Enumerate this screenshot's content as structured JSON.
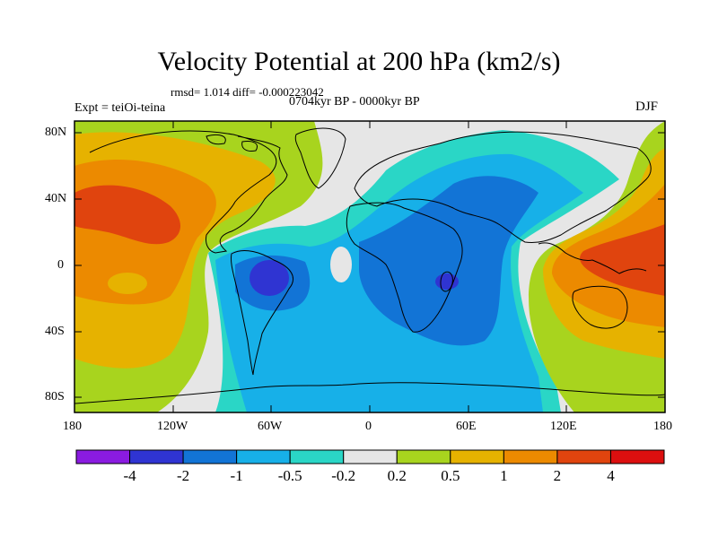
{
  "title": "Velocity Potential at 200 hPa (km2/s)",
  "stats": "rmsd= 1.014 diff= -0.000223042",
  "left_label": "Expt = teiOi-teina",
  "center_label": "0704kyr BP - 0000kyr BP",
  "right_label": "DJF",
  "lat_ticks": [
    "80N",
    "40N",
    "0",
    "40S",
    "80S"
  ],
  "lon_ticks": [
    "180",
    "120W",
    "60W",
    "0",
    "60E",
    "120E",
    "180"
  ],
  "colorbar": {
    "colors": [
      "#8a1be0",
      "#2f34d2",
      "#1274d6",
      "#17b0e8",
      "#2ad6c6",
      "#e6e6e6",
      "#a8d41e",
      "#e6b200",
      "#ec8a00",
      "#e0440e",
      "#dc0f0f"
    ],
    "labels": [
      "-4",
      "-2",
      "-1",
      "-0.5",
      "-0.2",
      "0.2",
      "0.5",
      "1",
      "2",
      "4"
    ]
  }
}
